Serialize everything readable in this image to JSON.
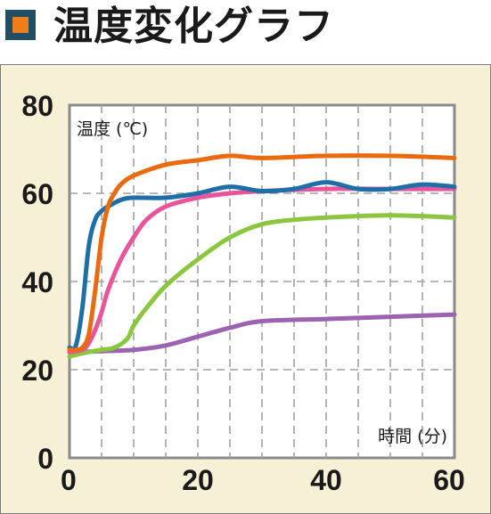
{
  "header": {
    "title": "温度変化グラフ",
    "icon": "orange-square-icon",
    "icon_colors": {
      "outer": "#1f4f66",
      "inner": "#f07d18"
    }
  },
  "chart_data": {
    "type": "line",
    "title": "温度変化グラフ",
    "ylabel": "温度 (℃)",
    "xlabel": "時間 (分)",
    "xlim": [
      0,
      60
    ],
    "ylim": [
      0,
      80
    ],
    "x_ticks": [
      "0",
      "20",
      "40",
      "60"
    ],
    "y_ticks": [
      "0",
      "20",
      "40",
      "60",
      "80"
    ],
    "grid": true,
    "legend": "none",
    "series": [
      {
        "color": "#1e6fa8",
        "x": [
          0,
          1,
          2,
          3,
          4,
          5,
          6,
          8,
          10,
          15,
          20,
          25,
          30,
          35,
          40,
          45,
          50,
          55,
          60
        ],
        "y": [
          25,
          25.5,
          34,
          48,
          54,
          56,
          57,
          58.5,
          59,
          59,
          60,
          61.5,
          60.5,
          61,
          62.5,
          61,
          61,
          62,
          61.5
        ]
      },
      {
        "color": "#ea6a10",
        "x": [
          0,
          1,
          2,
          3,
          4,
          5,
          6,
          7,
          8,
          10,
          15,
          20,
          25,
          30,
          40,
          50,
          60
        ],
        "y": [
          24.5,
          24.5,
          25,
          28,
          38,
          50,
          57,
          60,
          62,
          64,
          66.5,
          67.5,
          68.5,
          68,
          68.5,
          68.5,
          68
        ]
      },
      {
        "color": "#e8559a",
        "x": [
          0,
          2,
          3,
          4,
          5,
          6,
          8,
          10,
          12,
          15,
          20,
          25,
          30,
          40,
          50,
          60
        ],
        "y": [
          24,
          24.5,
          26,
          29,
          33,
          38,
          45,
          50,
          54,
          57,
          59,
          60,
          60.5,
          61,
          61,
          61
        ]
      },
      {
        "color": "#8cc63f",
        "x": [
          0,
          3,
          5,
          7,
          9,
          10,
          12,
          15,
          20,
          25,
          30,
          35,
          40,
          50,
          60
        ],
        "y": [
          23,
          24,
          24.5,
          25,
          27,
          30,
          34,
          39,
          45,
          50,
          53,
          54,
          54.5,
          55,
          54.5
        ]
      },
      {
        "color": "#9b63b0",
        "x": [
          0,
          5,
          10,
          15,
          20,
          25,
          30,
          40,
          50,
          60
        ],
        "y": [
          24,
          24.2,
          24.5,
          25.5,
          27.5,
          29.5,
          31,
          31.5,
          32,
          32.5
        ]
      }
    ]
  },
  "colors": {
    "panel_bg": "#f6f0d6",
    "plot_bg": "#ffffff",
    "grid": "#a0a0a0",
    "axis_text": "#1a1a1a"
  }
}
